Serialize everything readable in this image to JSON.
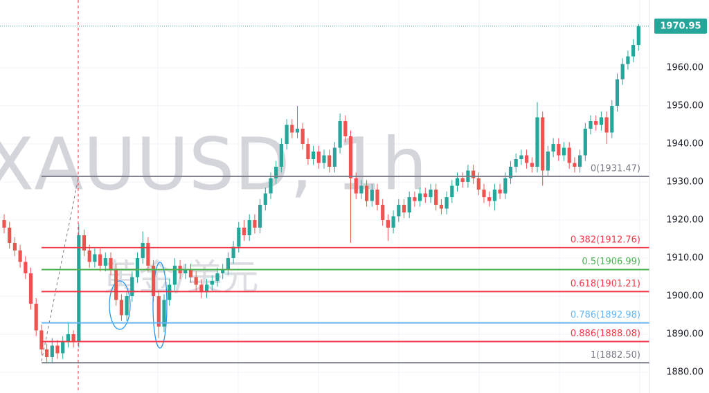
{
  "chart_data": {
    "type": "candlestick",
    "watermark": "XAUUSD, 1h",
    "watermark_sub": "黄金/美元",
    "up_color": "#26a69a",
    "down_color": "#ef5350",
    "ylim": [
      1874.55,
      1977.82
    ],
    "yticks": [
      {
        "value": 1880,
        "label": "1880.00"
      },
      {
        "value": 1890,
        "label": "1890.00"
      },
      {
        "value": 1900,
        "label": "1900.00"
      },
      {
        "value": 1910,
        "label": "1910.00"
      },
      {
        "value": 1920,
        "label": "1920.00"
      },
      {
        "value": 1930,
        "label": "1930.00"
      },
      {
        "value": 1940,
        "label": "1940.00"
      },
      {
        "value": 1950,
        "label": "1950.00"
      },
      {
        "value": 1960,
        "label": "1960.00"
      }
    ],
    "grid": true,
    "last_price": 1970.95,
    "fib_levels": [
      {
        "label": "0(1931.47)",
        "value": 1931.47,
        "color": "#787b86"
      },
      {
        "label": "0.382(1912.76)",
        "value": 1912.76,
        "color": "#f23645"
      },
      {
        "label": "0.5(1906.99)",
        "value": 1906.99,
        "color": "#4caf50"
      },
      {
        "label": "0.618(1901.21)",
        "value": 1901.21,
        "color": "#f23645"
      },
      {
        "label": "0.786(1892.98)",
        "value": 1892.98,
        "color": "#64b5f6"
      },
      {
        "label": "0.886(1888.08)",
        "value": 1888.08,
        "color": "#f23645"
      },
      {
        "label": "1(1882.50)",
        "value": 1882.5,
        "color": "#787b86"
      }
    ],
    "open": [
      1920,
      1918,
      1914,
      1912,
      1909,
      1906,
      1898,
      1891,
      1886,
      1884,
      1887,
      1885,
      1888,
      1890,
      1888,
      1916,
      1912,
      1909,
      1911,
      1908,
      1910,
      1907,
      1899,
      1895,
      1900,
      1905,
      1910,
      1914,
      1908,
      1900,
      1892,
      1899,
      1903,
      1908,
      1906,
      1907,
      1905,
      1903,
      1901,
      1903,
      1904,
      1906,
      1907,
      1910,
      1913,
      1918,
      1916,
      1920,
      1918,
      1924,
      1927,
      1931,
      1934,
      1940,
      1945,
      1943,
      1944,
      1940,
      1936,
      1938,
      1935,
      1937,
      1934,
      1939,
      1946,
      1942,
      1931,
      1927,
      1929,
      1925,
      1928,
      1924,
      1920,
      1918,
      1921,
      1924,
      1922,
      1926,
      1925,
      1927,
      1926,
      1928,
      1924,
      1923,
      1926,
      1929,
      1931,
      1930,
      1933,
      1931,
      1928,
      1926,
      1925,
      1928,
      1927,
      1931,
      1934,
      1936,
      1937,
      1935,
      1934,
      1947,
      1933,
      1938,
      1940,
      1937,
      1939,
      1935,
      1934,
      1937,
      1944,
      1946,
      1945,
      1947,
      1943,
      1950,
      1957,
      1961,
      1963,
      1966
    ],
    "high": [
      1921.5,
      1919.5,
      1915.5,
      1913.5,
      1910.5,
      1907.5,
      1899.5,
      1892.5,
      1887.5,
      1889,
      1888.5,
      1889.5,
      1893,
      1891,
      1919,
      1917.5,
      1913.5,
      1912.5,
      1912.5,
      1911.5,
      1911.5,
      1908.5,
      1900.5,
      1901.5,
      1906.5,
      1911.5,
      1917,
      1915.5,
      1909.5,
      1901.5,
      1900.5,
      1904.5,
      1910,
      1909.5,
      1908.5,
      1908.5,
      1906.5,
      1904.5,
      1904.5,
      1905.5,
      1907.5,
      1908.5,
      1911.5,
      1914.5,
      1919.5,
      1920,
      1921.5,
      1921.5,
      1925.5,
      1928.5,
      1932.5,
      1935.5,
      1941.5,
      1946.5,
      1946.5,
      1950,
      1945.5,
      1941.5,
      1939.5,
      1939.5,
      1938.5,
      1938.5,
      1940.5,
      1948,
      1947.5,
      1943.5,
      1932.5,
      1930.5,
      1930.5,
      1929.5,
      1929.5,
      1925.5,
      1921.5,
      1922.5,
      1925.5,
      1925.5,
      1927.5,
      1927.5,
      1928.5,
      1928.5,
      1929.5,
      1929.5,
      1925.5,
      1927.5,
      1930.5,
      1932.5,
      1932.5,
      1934.5,
      1934.5,
      1932.5,
      1929.5,
      1927.5,
      1929.5,
      1929.5,
      1932.5,
      1935.5,
      1937.5,
      1938.5,
      1938.5,
      1936.5,
      1951,
      1948.5,
      1939.5,
      1941.5,
      1941.5,
      1940.5,
      1940.5,
      1936.5,
      1938.5,
      1945.5,
      1947.5,
      1947.5,
      1948.5,
      1948.5,
      1951.5,
      1958.5,
      1962.5,
      1964.5,
      1967.5,
      1971.5
    ],
    "low": [
      1916.5,
      1912.5,
      1910.5,
      1907.5,
      1904.5,
      1896.5,
      1889.5,
      1884.5,
      1882.5,
      1882.5,
      1883.5,
      1883.5,
      1886.5,
      1886.5,
      1886.5,
      1910.5,
      1907.5,
      1907.5,
      1906.5,
      1906.5,
      1905.5,
      1897.5,
      1893.5,
      1893.5,
      1898.5,
      1903.5,
      1908.5,
      1906.5,
      1898.5,
      1889,
      1890.5,
      1897.5,
      1901.5,
      1904.5,
      1904.5,
      1903.5,
      1901.5,
      1899.5,
      1899.5,
      1901.5,
      1902.5,
      1904.5,
      1905.5,
      1908.5,
      1911.5,
      1914.5,
      1914.5,
      1916.5,
      1916.5,
      1922.5,
      1925.5,
      1929.5,
      1932.5,
      1938.5,
      1941.5,
      1941.5,
      1938.5,
      1934.5,
      1934.5,
      1933.5,
      1933.5,
      1932.5,
      1932.5,
      1937.5,
      1940.5,
      1914,
      1925.5,
      1925.5,
      1923.5,
      1923.5,
      1922.5,
      1918.5,
      1914.5,
      1916.5,
      1919.5,
      1920.5,
      1920.5,
      1923.5,
      1923.5,
      1924.5,
      1924.5,
      1922.5,
      1921.5,
      1921.5,
      1924.5,
      1927.5,
      1928.5,
      1928.5,
      1929.5,
      1926.5,
      1924.5,
      1923.5,
      1922.5,
      1925.5,
      1925.5,
      1929.5,
      1932.5,
      1934.5,
      1933.5,
      1932.5,
      1932.5,
      1929,
      1931.5,
      1936.5,
      1935.5,
      1935.5,
      1933.5,
      1932.5,
      1932.5,
      1935.5,
      1942.5,
      1943.5,
      1943.5,
      1940,
      1941.5,
      1948.5,
      1955.5,
      1959.5,
      1961.5,
      1964.5
    ],
    "close": [
      1918,
      1914,
      1912,
      1909,
      1906,
      1898,
      1891,
      1886,
      1884,
      1887,
      1885,
      1888,
      1890,
      1888,
      1916,
      1912,
      1909,
      1911,
      1908,
      1910,
      1907,
      1899,
      1895,
      1900,
      1905,
      1910,
      1914,
      1908,
      1900,
      1892,
      1899,
      1903,
      1908,
      1906,
      1907,
      1905,
      1903,
      1901,
      1903,
      1904,
      1906,
      1907,
      1910,
      1913,
      1918,
      1916,
      1920,
      1918,
      1924,
      1927,
      1931,
      1934,
      1940,
      1945,
      1943,
      1944,
      1940,
      1936,
      1938,
      1935,
      1937,
      1934,
      1939,
      1946,
      1942,
      1931,
      1927,
      1929,
      1925,
      1928,
      1924,
      1920,
      1918,
      1921,
      1924,
      1922,
      1926,
      1925,
      1927,
      1926,
      1928,
      1924,
      1923,
      1926,
      1929,
      1931,
      1930,
      1933,
      1931,
      1928,
      1926,
      1925,
      1928,
      1927,
      1931,
      1934,
      1936,
      1937,
      1935,
      1934,
      1947,
      1933,
      1938,
      1940,
      1937,
      1939,
      1935,
      1934,
      1937,
      1944,
      1946,
      1945,
      1947,
      1943,
      1950,
      1957,
      1961,
      1963,
      1966,
      1970.95
    ]
  }
}
